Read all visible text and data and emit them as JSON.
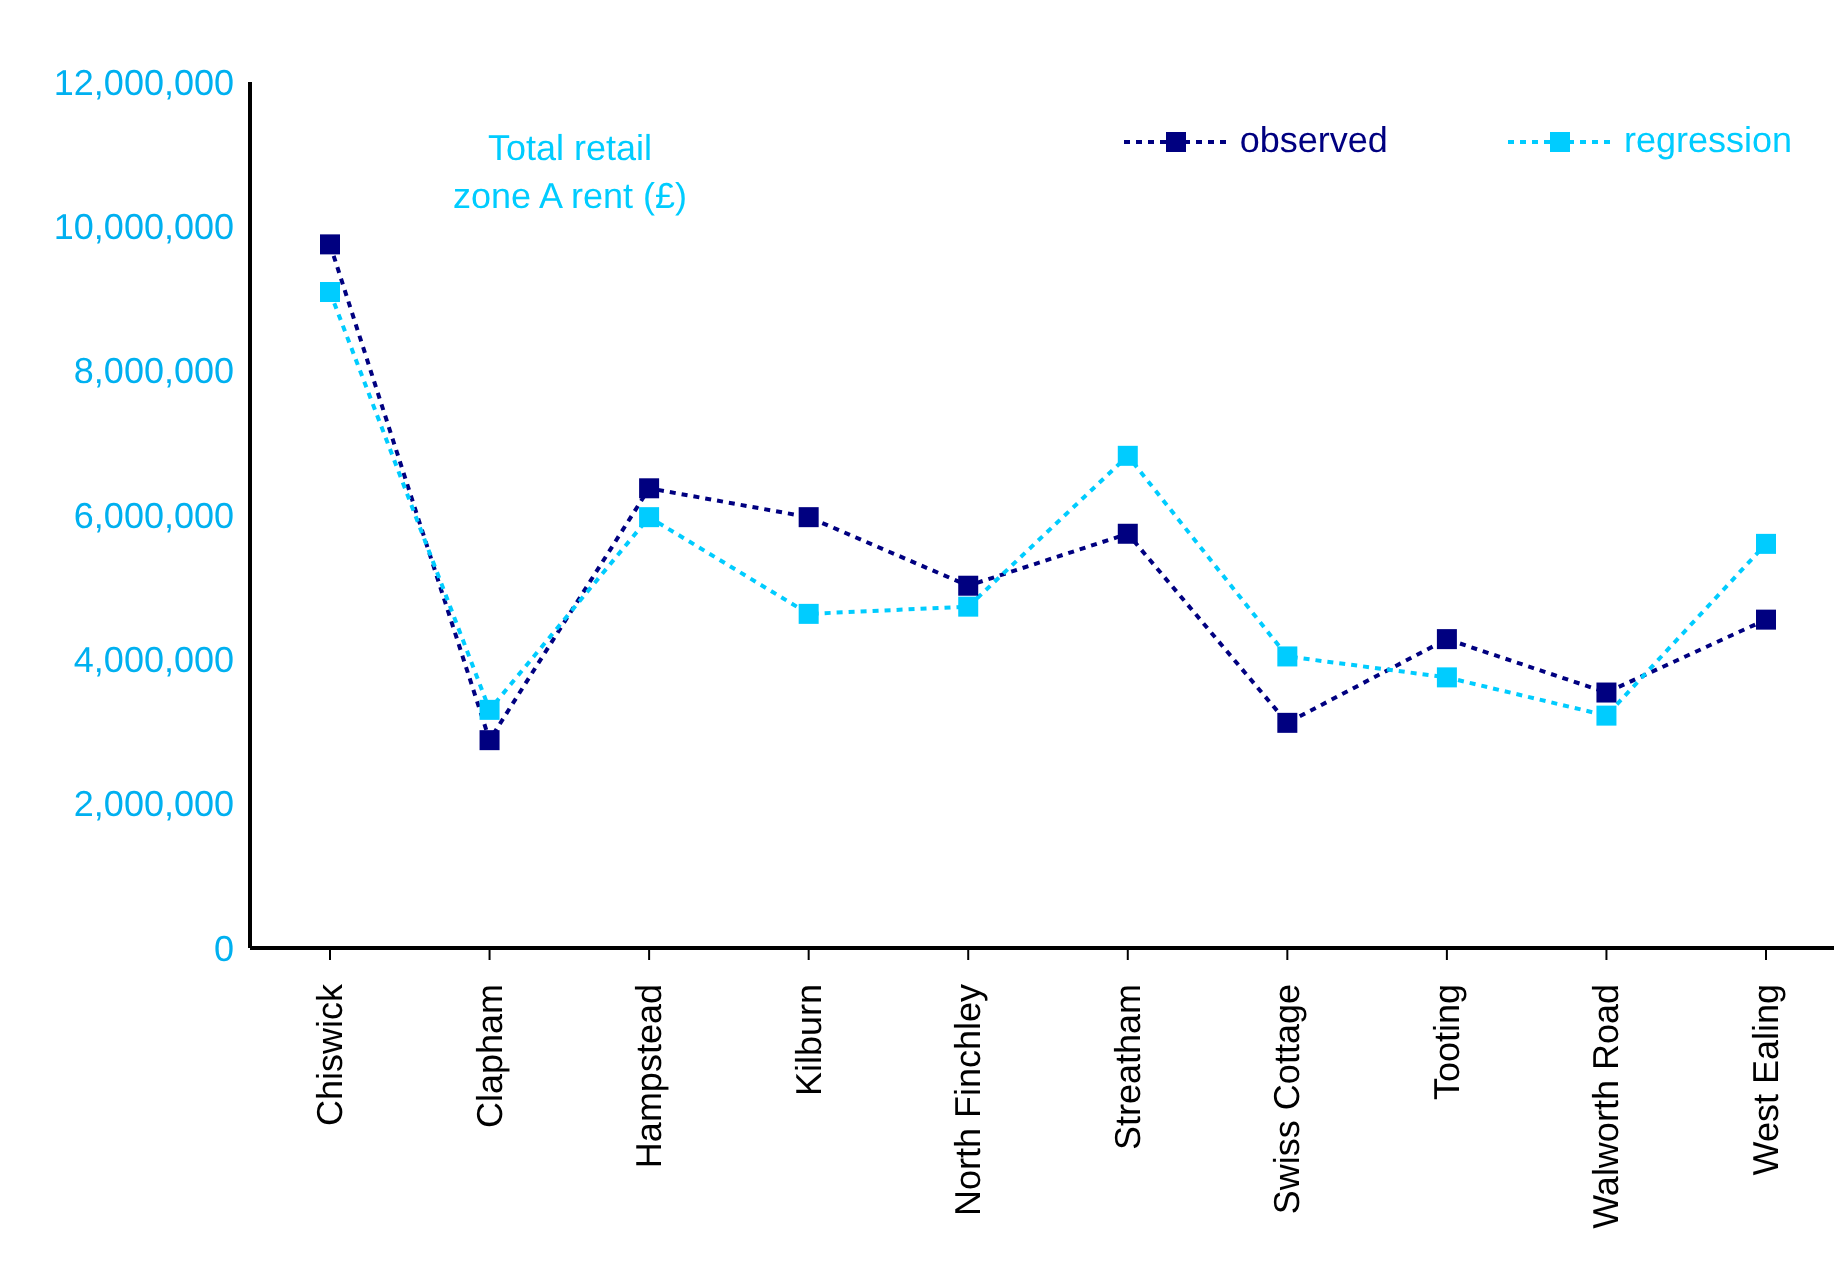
{
  "chart_data": {
    "type": "line",
    "categories": [
      "Chiswick",
      "Clapham",
      "Hampstead",
      "Kilburn",
      "North Finchley",
      "Streatham",
      "Swiss Cottage",
      "Tooting",
      "Walworth Road",
      "West Ealing"
    ],
    "series": [
      {
        "name": "observed",
        "color": "#000080",
        "values": [
          9750000,
          2880000,
          6370000,
          5970000,
          5020000,
          5740000,
          3120000,
          4280000,
          3540000,
          4550000
        ]
      },
      {
        "name": "regression",
        "color": "#00ccff",
        "values": [
          9090000,
          3300000,
          5970000,
          4630000,
          4730000,
          6820000,
          4040000,
          3750000,
          3220000,
          5600000
        ]
      }
    ],
    "ylim": [
      0,
      12000000
    ],
    "yticks": [
      0,
      {
        "value": 2000000,
        "label": "2,000,000"
      },
      {
        "value": 4000000,
        "label": "4,000,000"
      },
      {
        "value": 6000000,
        "label": "6,000,000"
      },
      {
        "value": 8000000,
        "label": "8,000,000"
      },
      {
        "value": 10000000,
        "label": "10,000,000"
      },
      {
        "value": 12000000,
        "label": "12,000,000"
      }
    ],
    "annotations": [
      "Total retail zone A rent (£)"
    ],
    "legend": "top right",
    "marker": "square",
    "line_style": "dashed",
    "grid": false
  }
}
